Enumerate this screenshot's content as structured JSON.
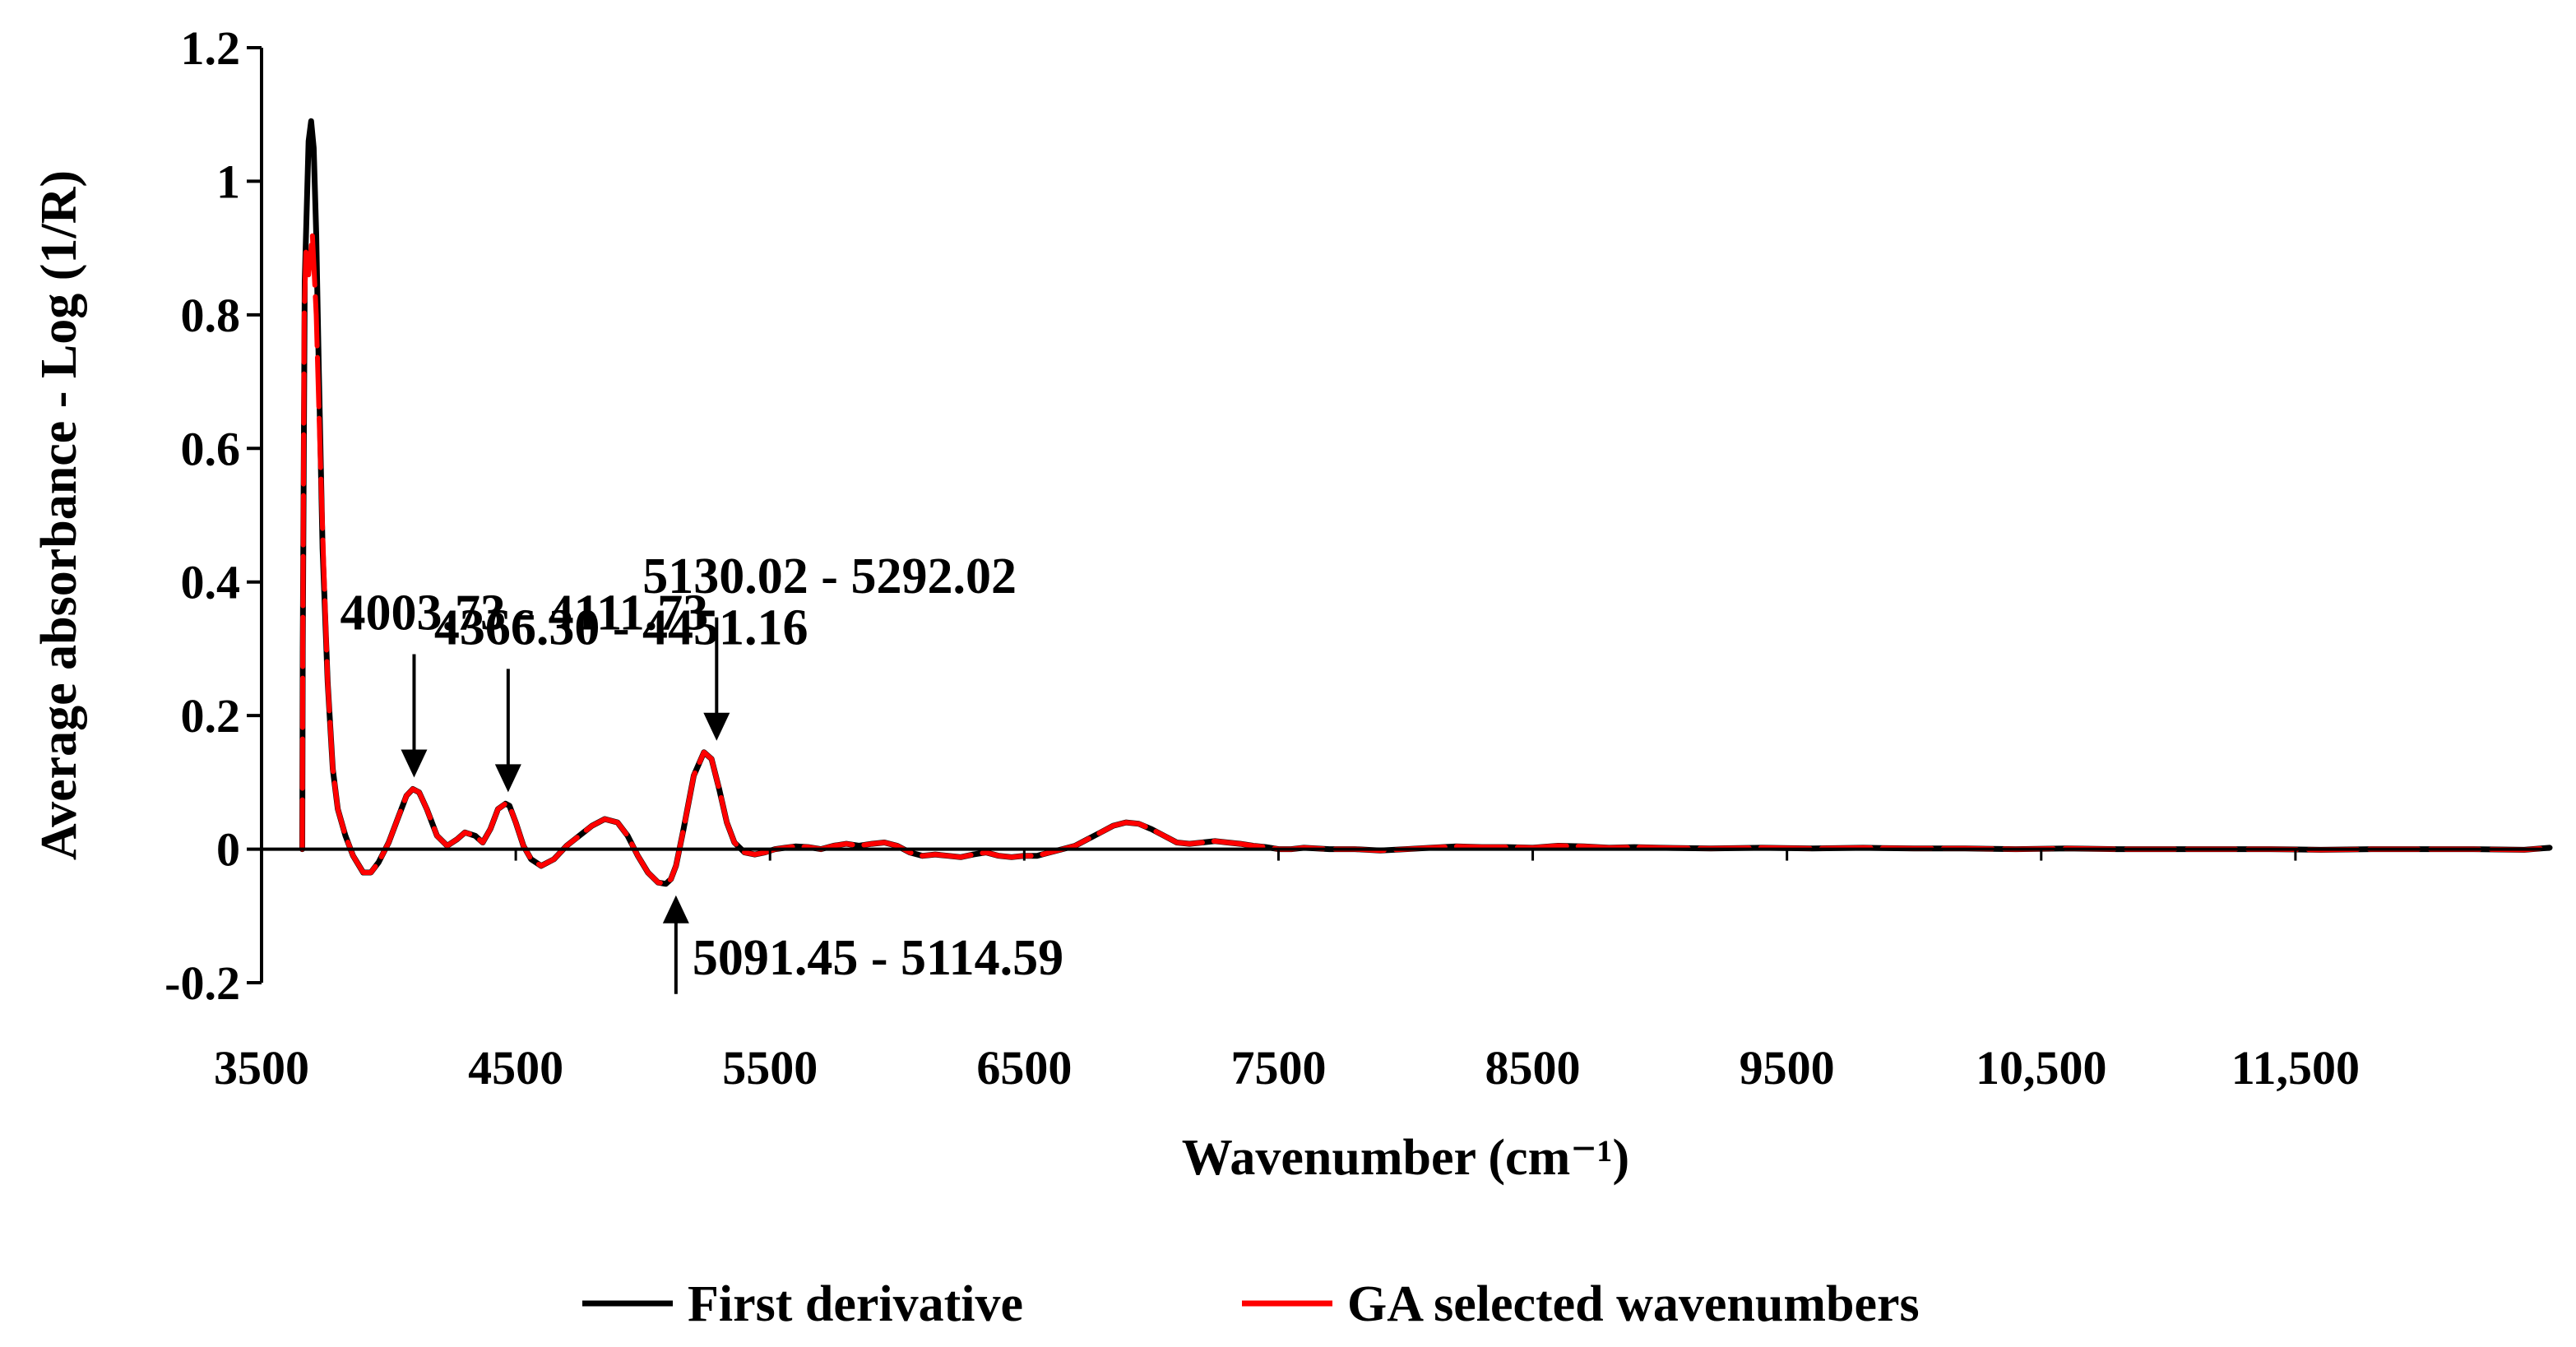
{
  "chart_data": {
    "type": "line",
    "xlabel": "Wavenumber (cm⁻¹)",
    "ylabel": "Average absorbance - Log (1/R)",
    "xlim": [
      3500,
      12500
    ],
    "ylim": [
      -0.2,
      1.2
    ],
    "x_ticks": [
      3500,
      4500,
      5500,
      6500,
      7500,
      8500,
      9500,
      10500,
      11500
    ],
    "x_tick_labels": [
      "3500",
      "4500",
      "5500",
      "6500",
      "7500",
      "8500",
      "9500",
      "10,500",
      "11,500"
    ],
    "y_ticks": [
      -0.2,
      0,
      0.2,
      0.4,
      0.6,
      0.8,
      1,
      1.2
    ],
    "y_tick_labels": [
      "-0.2",
      "0",
      "0.2",
      "0.4",
      "0.6",
      "0.8",
      "1",
      "1.2"
    ],
    "grid": false,
    "legend_position": "bottom",
    "series": [
      {
        "name": "First derivative",
        "color": "#000000",
        "x": [
          3660,
          3662,
          3670,
          3685,
          3695,
          3705,
          3715,
          3725,
          3740,
          3760,
          3780,
          3800,
          3830,
          3860,
          3900,
          3930,
          3960,
          4000,
          4040,
          4070,
          4095,
          4120,
          4150,
          4190,
          4230,
          4270,
          4300,
          4340,
          4370,
          4400,
          4430,
          4460,
          4475,
          4500,
          4530,
          4560,
          4600,
          4650,
          4700,
          4750,
          4800,
          4850,
          4900,
          4940,
          4980,
          5020,
          5060,
          5090,
          5110,
          5130,
          5160,
          5200,
          5240,
          5270,
          5300,
          5330,
          5360,
          5400,
          5440,
          5480,
          5520,
          5560,
          5600,
          5650,
          5700,
          5750,
          5800,
          5850,
          5900,
          5950,
          6000,
          6050,
          6100,
          6150,
          6200,
          6250,
          6300,
          6350,
          6400,
          6450,
          6500,
          6550,
          6600,
          6650,
          6700,
          6750,
          6800,
          6850,
          6900,
          6950,
          7000,
          7050,
          7100,
          7150,
          7200,
          7250,
          7300,
          7350,
          7400,
          7450,
          7500,
          7550,
          7600,
          7700,
          7800,
          7900,
          8000,
          8100,
          8200,
          8300,
          8400,
          8500,
          8600,
          8700,
          8800,
          8900,
          9000,
          9200,
          9400,
          9600,
          9800,
          10000,
          10200,
          10400,
          10600,
          10800,
          11000,
          11200,
          11400,
          11600,
          11800,
          12000,
          12200,
          12400,
          12500
        ],
        "y": [
          0.0,
          0.3,
          0.85,
          1.06,
          1.09,
          1.05,
          0.92,
          0.72,
          0.45,
          0.25,
          0.12,
          0.06,
          0.02,
          -0.01,
          -0.035,
          -0.035,
          -0.02,
          0.01,
          0.05,
          0.08,
          0.09,
          0.085,
          0.06,
          0.02,
          0.005,
          0.015,
          0.025,
          0.02,
          0.01,
          0.03,
          0.06,
          0.068,
          0.065,
          0.04,
          0.005,
          -0.015,
          -0.025,
          -0.015,
          0.005,
          0.02,
          0.035,
          0.045,
          0.04,
          0.02,
          -0.01,
          -0.035,
          -0.05,
          -0.052,
          -0.045,
          -0.025,
          0.03,
          0.11,
          0.145,
          0.135,
          0.09,
          0.04,
          0.01,
          -0.005,
          -0.008,
          -0.005,
          0.0,
          0.002,
          0.004,
          0.003,
          0.0,
          0.005,
          0.008,
          0.005,
          0.008,
          0.01,
          0.005,
          -0.005,
          -0.01,
          -0.008,
          -0.01,
          -0.012,
          -0.008,
          -0.005,
          -0.01,
          -0.012,
          -0.01,
          -0.01,
          -0.005,
          0.0,
          0.005,
          0.015,
          0.025,
          0.035,
          0.04,
          0.038,
          0.03,
          0.02,
          0.01,
          0.008,
          0.01,
          0.012,
          0.01,
          0.008,
          0.005,
          0.003,
          0.0,
          0.0,
          0.002,
          0.0,
          0.0,
          -0.002,
          0.0,
          0.002,
          0.004,
          0.003,
          0.003,
          0.002,
          0.005,
          0.004,
          0.002,
          0.003,
          0.002,
          0.001,
          0.002,
          0.001,
          0.002,
          0.001,
          0.001,
          0.0,
          0.001,
          0.0,
          0.0,
          0.0,
          0.0,
          -0.001,
          0.0,
          0.0,
          0.0,
          -0.001,
          0.002
        ]
      },
      {
        "name": "GA selected wavenumbers",
        "color": "#ff0000",
        "x": [
          3660,
          3662,
          3668,
          3675,
          3685,
          3700,
          3715,
          3730,
          3745,
          3760,
          3780,
          3800,
          3830,
          3860,
          3900,
          3930,
          3960,
          4000,
          4040,
          4070,
          4095,
          4120,
          4150,
          4190,
          4230,
          4270,
          4300,
          4340,
          4370,
          4400,
          4430,
          4460,
          4475,
          4500,
          4530,
          4560,
          4600,
          4650,
          4700,
          4750,
          4800,
          4850,
          4900,
          4940,
          4980,
          5020,
          5060,
          5090,
          5110,
          5130,
          5160,
          5200,
          5240,
          5270,
          5300,
          5330,
          5360,
          5400,
          5440,
          5480,
          5520,
          5560,
          5600,
          5650,
          5700,
          5750,
          5800,
          5850,
          5900,
          5950,
          6000,
          6050,
          6100,
          6150,
          6200,
          6250,
          6300,
          6350,
          6400,
          6450,
          6500,
          6550,
          6600,
          6650,
          6700,
          6750,
          6800,
          6850,
          6900,
          6950,
          7000,
          7050,
          7100,
          7150,
          7200,
          7250,
          7300,
          7350,
          7400,
          7450,
          7500,
          7550,
          7600,
          7700,
          7800,
          7900,
          8000,
          8100,
          8200,
          8300,
          8400,
          8500,
          8600,
          8700,
          8800,
          8900,
          9000,
          9200,
          9400,
          9600,
          9800,
          10000,
          10200,
          10400,
          10600,
          10800,
          11000,
          11200,
          11400,
          11600,
          11800,
          12000,
          12200,
          12400,
          12500
        ],
        "y": [
          0.0,
          0.3,
          0.8,
          0.9,
          0.86,
          0.92,
          0.8,
          0.6,
          0.42,
          0.25,
          0.12,
          0.06,
          0.02,
          -0.01,
          -0.035,
          -0.035,
          -0.02,
          0.01,
          0.05,
          0.08,
          0.09,
          0.085,
          0.06,
          0.02,
          0.005,
          0.015,
          0.025,
          0.02,
          0.01,
          0.03,
          0.06,
          0.068,
          0.065,
          0.04,
          0.005,
          -0.015,
          -0.025,
          -0.015,
          0.005,
          0.02,
          0.035,
          0.045,
          0.04,
          0.02,
          -0.01,
          -0.035,
          -0.05,
          -0.052,
          -0.045,
          -0.025,
          0.03,
          0.11,
          0.145,
          0.135,
          0.09,
          0.04,
          0.01,
          -0.005,
          -0.008,
          -0.005,
          0.0,
          0.002,
          0.004,
          0.003,
          0.0,
          0.005,
          0.008,
          0.005,
          0.008,
          0.01,
          0.005,
          -0.005,
          -0.01,
          -0.008,
          -0.01,
          -0.012,
          -0.008,
          -0.005,
          -0.01,
          -0.012,
          -0.01,
          -0.01,
          -0.005,
          0.0,
          0.005,
          0.015,
          0.025,
          0.035,
          0.04,
          0.038,
          0.03,
          0.02,
          0.01,
          0.008,
          0.01,
          0.012,
          0.01,
          0.008,
          0.005,
          0.003,
          0.0,
          0.0,
          0.002,
          0.0,
          0.0,
          -0.002,
          0.0,
          0.002,
          0.004,
          0.003,
          0.003,
          0.002,
          0.005,
          0.004,
          0.002,
          0.003,
          0.002,
          0.001,
          0.002,
          0.001,
          0.002,
          0.001,
          0.001,
          0.0,
          0.001,
          0.0,
          0.0,
          0.0,
          0.0,
          -0.001,
          0.0,
          0.0,
          0.0,
          -0.001,
          0.002
        ]
      }
    ],
    "annotations": [
      {
        "text": "4003.73 - 4111.73",
        "x": 4100,
        "y": 0.09,
        "direction": "down"
      },
      {
        "text": "4366.30 - 4451.16",
        "x": 4470,
        "y": 0.068,
        "direction": "down"
      },
      {
        "text": "5130.02 - 5292.02",
        "x": 5290,
        "y": 0.145,
        "direction": "down"
      },
      {
        "text": "5091.45 - 5114.59",
        "x": 5130,
        "y": -0.052,
        "direction": "up"
      }
    ]
  }
}
